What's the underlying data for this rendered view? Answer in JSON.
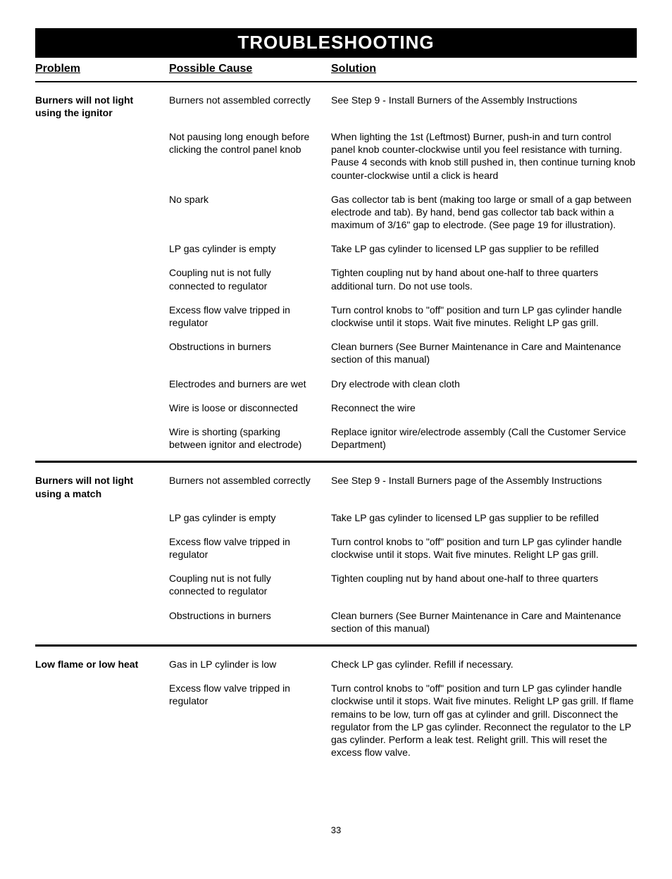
{
  "title": "TROUBLESHOOTING",
  "headers": {
    "problem": "Problem",
    "cause": "Possible Cause",
    "solution": "Solution"
  },
  "sections": [
    {
      "problem": "Burners will not light using the ignitor",
      "rows": [
        {
          "cause": "Burners not assembled correctly",
          "solution": "See Step 9 - Install Burners of the Assembly Instructions"
        },
        {
          "cause": "Not pausing long enough before clicking the control panel knob",
          "solution": "When lighting the 1st (Leftmost) Burner, push-in and turn control panel knob counter-clockwise until you feel resistance with turning.  Pause 4 seconds with knob still pushed in, then continue turning knob counter-clockwise until a click is heard"
        },
        {
          "cause": "No spark",
          "solution": "Gas collector tab is bent (making too large or small of a gap between electrode and tab). By hand, bend gas collector tab back within a maximum of 3/16\" gap to electrode. (See page 19 for illustration)."
        },
        {
          "cause": "LP gas cylinder is empty",
          "solution": "Take LP gas cylinder to licensed LP gas supplier to be refilled"
        },
        {
          "cause": "Coupling nut is not fully connected to regulator",
          "solution": "Tighten coupling nut by hand about one-half to three quarters additional turn. Do not use tools."
        },
        {
          "cause": "Excess flow valve tripped in regulator",
          "solution": "Turn control knobs to \"off\" position and turn LP gas cylinder handle clockwise until it stops.  Wait five minutes.  Relight LP gas grill."
        },
        {
          "cause": "Obstructions in burners",
          "solution": "Clean burners (See Burner Maintenance in Care and Maintenance section of this manual)"
        },
        {
          "cause": "Electrodes and burners are wet",
          "solution": "Dry electrode with clean cloth"
        },
        {
          "cause": "Wire is loose or disconnected",
          "solution": "Reconnect the wire"
        },
        {
          "cause": "Wire is shorting (sparking between ignitor and electrode)",
          "solution": "Replace ignitor wire/electrode assembly (Call the Customer Service Department)"
        }
      ]
    },
    {
      "problem": "Burners will not light using a match",
      "rows": [
        {
          "cause": "Burners not assembled correctly",
          "solution": "See Step 9 - Install Burners page of the Assembly Instructions"
        },
        {
          "cause": "LP gas cylinder is empty",
          "solution": "Take LP gas cylinder to licensed LP gas supplier to be refilled"
        },
        {
          "cause": "Excess flow valve tripped in regulator",
          "solution": "Turn control knobs to \"off\" position and turn LP gas cylinder handle clockwise until it stops.  Wait five minutes.  Relight LP gas grill."
        },
        {
          "cause": "Coupling nut is not fully connected to regulator",
          "solution": "Tighten coupling nut by hand about one-half to three quarters"
        },
        {
          "cause": "Obstructions in burners",
          "solution": "Clean burners (See Burner Maintenance in Care and Maintenance section of this manual)"
        }
      ]
    },
    {
      "problem": "Low flame or low heat",
      "rows": [
        {
          "cause": "Gas in LP cylinder is low",
          "solution": "Check LP gas cylinder. Refill if necessary."
        },
        {
          "cause": "Excess flow valve tripped in regulator",
          "solution": "Turn control knobs to \"off\" position and turn LP gas cylinder handle clockwise until it stops.  Wait five minutes.  Relight LP gas grill. If flame remains to be low, turn off gas at cylinder and grill.  Disconnect the regulator from the LP gas cylinder.  Reconnect the regulator to the LP gas cylinder.  Perform a leak test. Relight grill. This will reset the excess flow valve."
        }
      ]
    }
  ],
  "page_number": "33"
}
